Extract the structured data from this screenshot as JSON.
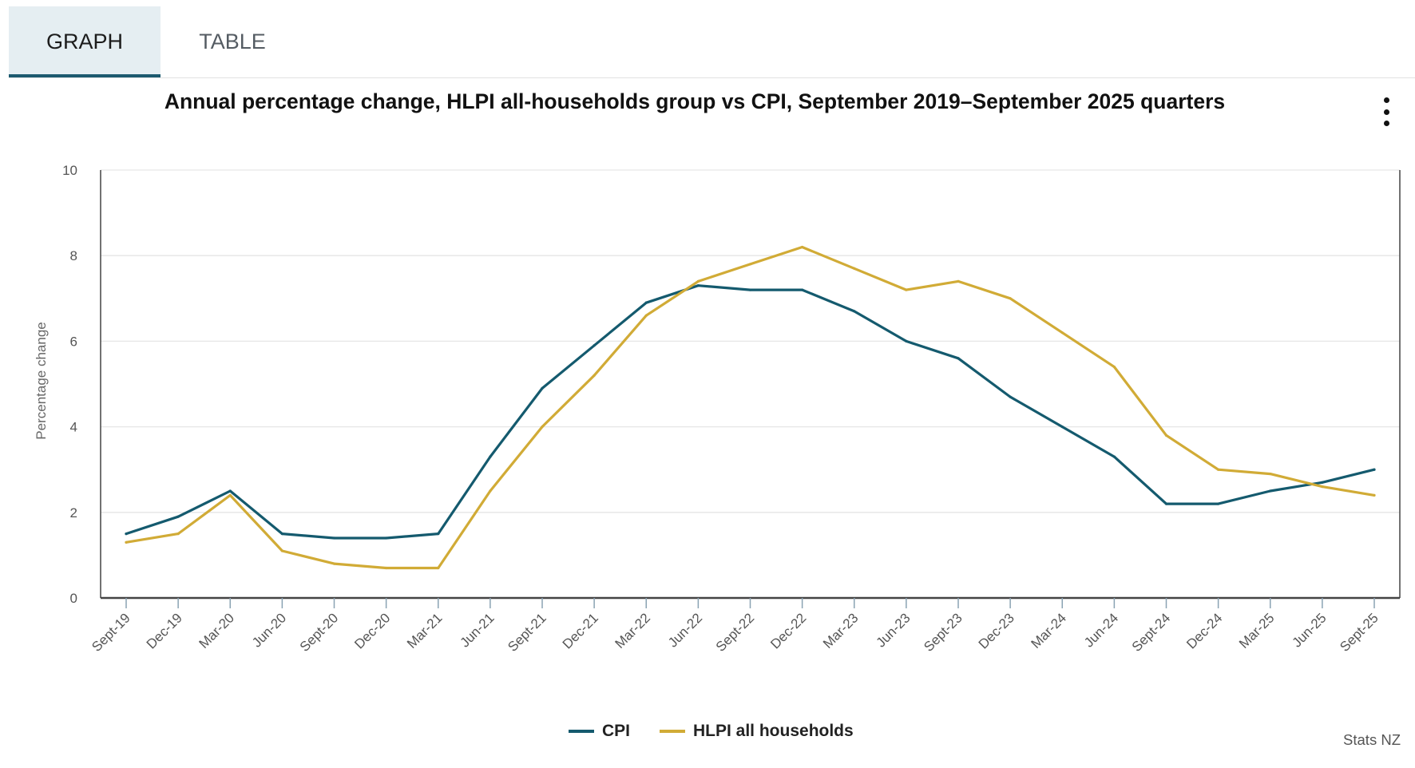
{
  "tabs": [
    {
      "label": "GRAPH",
      "active": true
    },
    {
      "label": "TABLE",
      "active": false
    }
  ],
  "menu_icon": "more-vertical-icon",
  "credit": "Stats NZ",
  "colors": {
    "cpi": "#145a6e",
    "hlpi": "#d1ab36",
    "grid": "#e6e6e6",
    "axis": "#444444"
  },
  "chart_data": {
    "type": "line",
    "title": "Annual percentage change, HLPI all-households group vs CPI, September 2019–September 2025 quarters",
    "xlabel": "",
    "ylabel": "Percentage change",
    "ylim": [
      0,
      10
    ],
    "yticks": [
      0,
      2,
      4,
      6,
      8,
      10
    ],
    "categories": [
      "Sept-19",
      "Dec-19",
      "Mar-20",
      "Jun-20",
      "Sept-20",
      "Dec-20",
      "Mar-21",
      "Jun-21",
      "Sept-21",
      "Dec-21",
      "Mar-22",
      "Jun-22",
      "Sept-22",
      "Dec-22",
      "Mar-23",
      "Jun-23",
      "Sept-23",
      "Dec-23",
      "Mar-24",
      "Jun-24",
      "Sept-24",
      "Dec-24",
      "Mar-25",
      "Jun-25",
      "Sept-25"
    ],
    "series": [
      {
        "name": "CPI",
        "values": [
          1.5,
          1.9,
          2.5,
          1.5,
          1.4,
          1.4,
          1.5,
          3.3,
          4.9,
          5.9,
          6.9,
          7.3,
          7.2,
          7.2,
          6.7,
          6.0,
          5.6,
          4.7,
          4.0,
          3.3,
          2.2,
          2.2,
          2.5,
          2.7,
          3.0
        ]
      },
      {
        "name": "HLPI all households",
        "values": [
          1.3,
          1.5,
          2.4,
          1.1,
          0.8,
          0.7,
          0.7,
          2.5,
          4.0,
          5.2,
          6.6,
          7.4,
          7.8,
          8.2,
          7.7,
          7.2,
          7.4,
          7.0,
          6.2,
          5.4,
          3.8,
          3.0,
          2.9,
          2.6,
          2.4
        ]
      }
    ],
    "grid": true,
    "legend_position": "bottom-center"
  }
}
